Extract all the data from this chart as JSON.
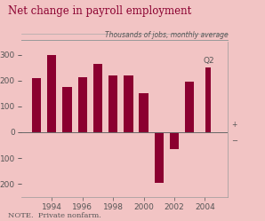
{
  "title": "Net change in payroll employment",
  "subtitle": "Thousands of jobs, monthly average",
  "note": "NOTE.  Private nonfarm.",
  "bar_color": "#8B0030",
  "background_color": "#F2C4C4",
  "title_color": "#8B0030",
  "text_color": "#555555",
  "bar_years": [
    1993,
    1994,
    1995,
    1996,
    1997,
    1998,
    1999,
    2000,
    2001,
    2002,
    2003,
    2004.2
  ],
  "values": [
    210,
    300,
    175,
    215,
    265,
    220,
    220,
    150,
    -195,
    -65,
    195,
    250
  ],
  "bar_widths": [
    0.6,
    0.6,
    0.6,
    0.6,
    0.6,
    0.6,
    0.6,
    0.6,
    0.6,
    0.6,
    0.6,
    0.35
  ],
  "q2_x": 2004.2,
  "q2_y": 250,
  "q2_label": "Q2",
  "yticks": [
    -200,
    -100,
    0,
    100,
    200,
    300
  ],
  "ylim": [
    -250,
    350
  ],
  "xlim": [
    1992.0,
    2005.5
  ],
  "xticks": [
    1994,
    1996,
    1998,
    2000,
    2002,
    2004
  ]
}
